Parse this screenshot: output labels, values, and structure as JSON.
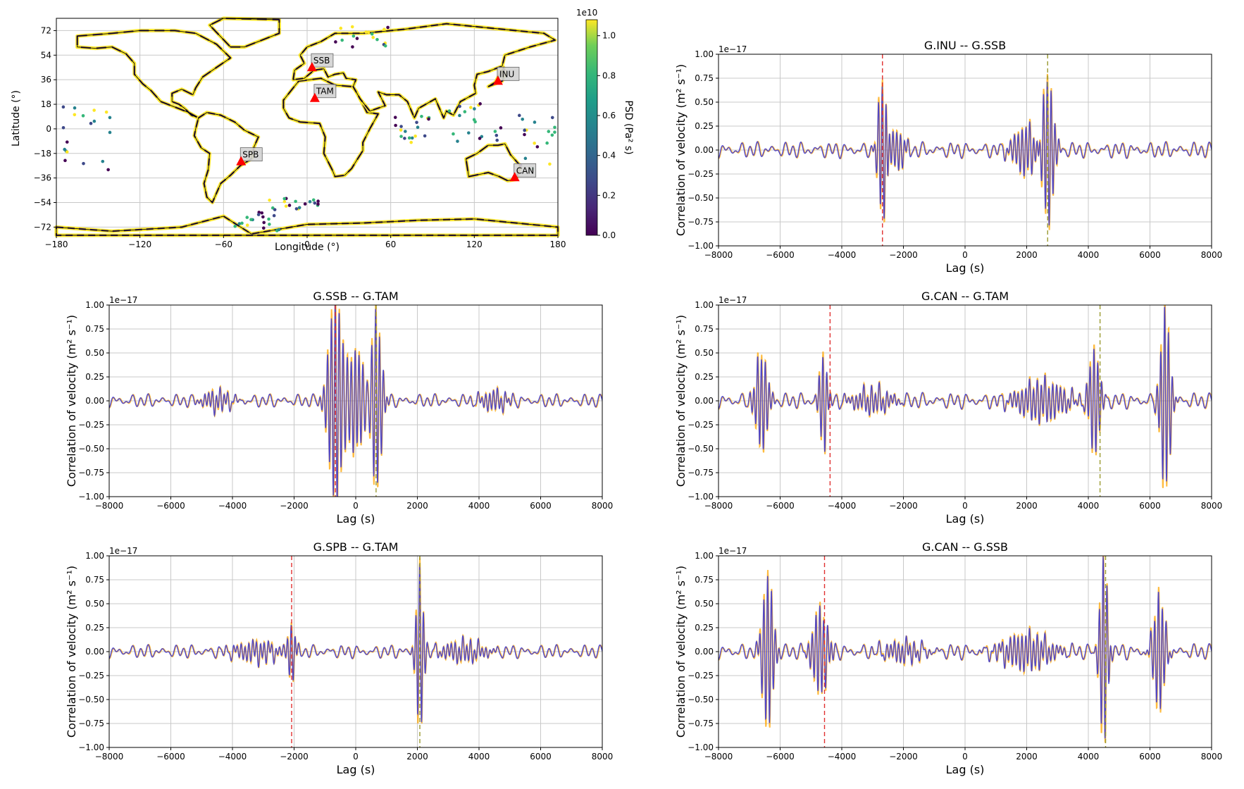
{
  "map": {
    "xlabel": "Longitude (°)",
    "ylabel": "Latitude (°)",
    "xticks": [
      -180,
      -120,
      -60,
      0,
      60,
      120,
      180
    ],
    "yticks": [
      72,
      54,
      36,
      18,
      0,
      -18,
      -36,
      -54,
      -72
    ],
    "colorbar": {
      "label": "PSD (Pa² s)",
      "offset_text": "1e10",
      "ticks": [
        "0.0",
        "0.2",
        "0.4",
        "0.6",
        "0.8",
        "1.0"
      ],
      "tick_values": [
        0,
        0.2,
        0.4,
        0.6,
        0.8,
        1.0
      ],
      "max": 1.08,
      "colormap": "viridis"
    },
    "stations": [
      {
        "label": "SSB",
        "lon": 3.5,
        "lat": 45.3
      },
      {
        "label": "TAM",
        "lon": 5.5,
        "lat": 22.8
      },
      {
        "label": "INU",
        "lon": 137.0,
        "lat": 35.4
      },
      {
        "label": "SPB",
        "lon": -47.4,
        "lat": -23.6
      },
      {
        "label": "CAN",
        "lon": 149.0,
        "lat": -35.3
      }
    ],
    "marker_color": "#ff0000"
  },
  "chart_data": [
    {
      "type": "line",
      "title": "G.INU -- G.SSB",
      "xlabel": "Lag (s)",
      "ylabel": "Correlation of velocity (m² s⁻¹)",
      "offset_text": "1e−17",
      "xlim": [
        -8000,
        8000
      ],
      "ylim": [
        -1.0,
        1.0
      ],
      "xticks": [
        -8000,
        -6000,
        -4000,
        -2000,
        0,
        2000,
        4000,
        6000,
        8000
      ],
      "yticks": [
        "1.00",
        "0.75",
        "0.50",
        "0.25",
        "0.00",
        "−0.25",
        "−0.50",
        "−0.75",
        "−1.00"
      ],
      "grid": true,
      "series": [
        {
          "color": "#ffa500",
          "style": "solid"
        },
        {
          "color": "#3333dd",
          "style": "solid"
        }
      ],
      "vlines": [
        {
          "x": -2680,
          "color": "#e03030"
        },
        {
          "x": 2680,
          "color": "#9a9a30"
        }
      ],
      "packets": [
        {
          "center": -2680,
          "amp": 0.72,
          "width": 180
        },
        {
          "center": 2680,
          "amp": 0.8,
          "width": 240
        },
        {
          "center": -2200,
          "amp": 0.2,
          "width": 300
        },
        {
          "center": 2000,
          "amp": 0.25,
          "width": 500
        }
      ],
      "noise": 0.06
    },
    {
      "type": "line",
      "title": "G.SSB -- G.TAM",
      "xlabel": "Lag (s)",
      "ylabel": "Correlation of velocity (m² s⁻¹)",
      "offset_text": "1e−17",
      "xlim": [
        -8000,
        8000
      ],
      "ylim": [
        -1.0,
        1.0
      ],
      "xticks": [
        -8000,
        -6000,
        -4000,
        -2000,
        0,
        2000,
        4000,
        6000,
        8000
      ],
      "yticks": [
        "1.00",
        "0.75",
        "0.50",
        "0.25",
        "0.00",
        "−0.25",
        "−0.50",
        "−0.75",
        "−1.00"
      ],
      "grid": true,
      "series": [
        {
          "color": "#ffa500",
          "style": "solid"
        },
        {
          "color": "#3333dd",
          "style": "solid"
        }
      ],
      "vlines": [
        {
          "x": -660,
          "color": "#e03030"
        },
        {
          "x": 660,
          "color": "#9a9a30"
        }
      ],
      "packets": [
        {
          "center": -660,
          "amp": 1.05,
          "width": 280
        },
        {
          "center": 660,
          "amp": 0.95,
          "width": 220
        },
        {
          "center": 0,
          "amp": 0.5,
          "width": 450
        },
        {
          "center": -4500,
          "amp": 0.1,
          "width": 500
        },
        {
          "center": 4500,
          "amp": 0.1,
          "width": 500
        }
      ],
      "noise": 0.05
    },
    {
      "type": "line",
      "title": "G.CAN -- G.TAM",
      "xlabel": "Lag (s)",
      "ylabel": "Correlation of velocity (m² s⁻¹)",
      "offset_text": "1e−17",
      "xlim": [
        -8000,
        8000
      ],
      "ylim": [
        -1.0,
        1.0
      ],
      "xticks": [
        -8000,
        -6000,
        -4000,
        -2000,
        0,
        2000,
        4000,
        6000,
        8000
      ],
      "yticks": [
        "1.00",
        "0.75",
        "0.50",
        "0.25",
        "0.00",
        "−0.25",
        "−0.50",
        "−0.75",
        "−1.00"
      ],
      "grid": true,
      "series": [
        {
          "color": "#ffa500",
          "style": "solid"
        },
        {
          "color": "#3333dd",
          "style": "solid"
        }
      ],
      "vlines": [
        {
          "x": -4380,
          "color": "#e03030"
        },
        {
          "x": 4380,
          "color": "#9a9a30"
        }
      ],
      "packets": [
        {
          "center": -6600,
          "amp": 0.5,
          "width": 250
        },
        {
          "center": -4600,
          "amp": 0.5,
          "width": 160
        },
        {
          "center": 4200,
          "amp": 0.55,
          "width": 220
        },
        {
          "center": 6500,
          "amp": 0.95,
          "width": 200
        },
        {
          "center": 2500,
          "amp": 0.2,
          "width": 900
        },
        {
          "center": -3000,
          "amp": 0.12,
          "width": 700
        }
      ],
      "noise": 0.06
    },
    {
      "type": "line",
      "title": "G.SPB -- G.TAM",
      "xlabel": "Lag (s)",
      "ylabel": "Correlation of velocity (m² s⁻¹)",
      "offset_text": "1e−17",
      "xlim": [
        -8000,
        8000
      ],
      "ylim": [
        -1.0,
        1.0
      ],
      "xticks": [
        -8000,
        -6000,
        -4000,
        -2000,
        0,
        2000,
        4000,
        6000,
        8000
      ],
      "yticks": [
        "1.00",
        "0.75",
        "0.50",
        "0.25",
        "0.00",
        "−0.25",
        "−0.50",
        "−0.75",
        "−1.00"
      ],
      "grid": true,
      "series": [
        {
          "color": "#ffa500",
          "style": "solid"
        },
        {
          "color": "#3333dd",
          "style": "solid"
        }
      ],
      "vlines": [
        {
          "x": -2080,
          "color": "#e03030"
        },
        {
          "x": 2080,
          "color": "#9a9a30"
        }
      ],
      "packets": [
        {
          "center": 2080,
          "amp": 0.85,
          "width": 150
        },
        {
          "center": -2080,
          "amp": 0.28,
          "width": 150
        },
        {
          "center": -3200,
          "amp": 0.1,
          "width": 800
        },
        {
          "center": 3500,
          "amp": 0.1,
          "width": 800
        }
      ],
      "noise": 0.05
    },
    {
      "type": "line",
      "title": "G.CAN -- G.SSB",
      "xlabel": "Lag (s)",
      "ylabel": "Correlation of velocity (m² s⁻¹)",
      "offset_text": "1e−17",
      "xlim": [
        -8000,
        8000
      ],
      "ylim": [
        -1.0,
        1.0
      ],
      "xticks": [
        -8000,
        -6000,
        -4000,
        -2000,
        0,
        2000,
        4000,
        6000,
        8000
      ],
      "yticks": [
        "1.00",
        "0.75",
        "0.50",
        "0.25",
        "0.00",
        "−0.25",
        "−0.50",
        "−0.75",
        "−1.00"
      ],
      "grid": true,
      "series": [
        {
          "color": "#ffa500",
          "style": "solid"
        },
        {
          "color": "#3333dd",
          "style": "solid"
        }
      ],
      "vlines": [
        {
          "x": -4560,
          "color": "#e03030"
        },
        {
          "x": 4560,
          "color": "#9a9a30"
        }
      ],
      "packets": [
        {
          "center": -6400,
          "amp": 0.8,
          "width": 220
        },
        {
          "center": -4700,
          "amp": 0.45,
          "width": 300
        },
        {
          "center": 4500,
          "amp": 1.0,
          "width": 160
        },
        {
          "center": 6300,
          "amp": 0.6,
          "width": 230
        },
        {
          "center": 2000,
          "amp": 0.18,
          "width": 900
        },
        {
          "center": -2000,
          "amp": 0.1,
          "width": 700
        }
      ],
      "noise": 0.06
    }
  ]
}
